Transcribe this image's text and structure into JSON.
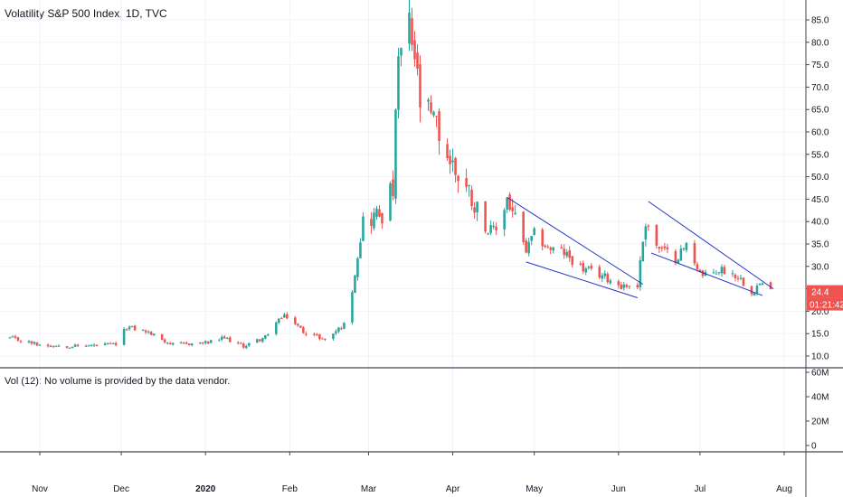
{
  "chart_data": {
    "type": "candlestick",
    "title": "Volatility S&P 500 Index, 1D, TVC",
    "x_tick_labels": [
      "Nov",
      "Dec",
      "2020",
      "Feb",
      "Mar",
      "Apr",
      "May",
      "Jun",
      "Jul",
      "Aug"
    ],
    "y_tick_labels": [
      "10.0",
      "15.0",
      "20.0",
      "25.0",
      "30.0",
      "35.0",
      "40.0",
      "45.0",
      "50.0",
      "55.0",
      "60.0",
      "65.0",
      "70.0",
      "75.0",
      "80.0",
      "85.0"
    ],
    "ylim": [
      7.5,
      87.5
    ],
    "last_price_label": "24.4",
    "countdown_label": "01:21:42",
    "colors": {
      "up": "#26a69a",
      "down": "#ef5350",
      "trendline": "#2633c2",
      "price_tag": "#ef5350"
    },
    "anchors": [
      [
        "2019-10-21",
        14.0
      ],
      [
        "2019-11-01",
        12.5
      ],
      [
        "2019-11-15",
        12.2
      ],
      [
        "2019-11-29",
        12.6
      ],
      [
        "2019-12-03",
        16.5
      ],
      [
        "2019-12-10",
        15.5
      ],
      [
        "2019-12-20",
        12.5
      ],
      [
        "2020-01-02",
        13.0
      ],
      [
        "2020-01-08",
        14.0
      ],
      [
        "2020-01-15",
        12.2
      ],
      [
        "2020-01-24",
        14.5
      ],
      [
        "2020-01-27",
        18.0
      ],
      [
        "2020-01-31",
        18.8
      ],
      [
        "2020-02-06",
        15.5
      ],
      [
        "2020-02-14",
        13.7
      ],
      [
        "2020-02-21",
        17.0
      ],
      [
        "2020-02-24",
        25.0
      ],
      [
        "2020-02-28",
        40.1
      ],
      [
        "2020-03-06",
        42.0
      ],
      [
        "2020-03-10",
        47.3
      ],
      [
        "2020-03-12",
        75.5
      ],
      [
        "2020-03-16",
        82.7
      ],
      [
        "2020-03-18",
        76.5
      ],
      [
        "2020-03-20",
        66.0
      ],
      [
        "2020-03-26",
        61.0
      ],
      [
        "2020-03-31",
        53.5
      ],
      [
        "2020-04-07",
        46.7
      ],
      [
        "2020-04-14",
        37.8
      ],
      [
        "2020-04-17",
        38.2
      ],
      [
        "2020-04-21",
        45.4
      ],
      [
        "2020-04-28",
        33.3
      ],
      [
        "2020-05-01",
        37.2
      ],
      [
        "2020-05-06",
        34.1
      ],
      [
        "2020-05-12",
        33.0
      ],
      [
        "2020-05-19",
        29.3
      ],
      [
        "2020-05-26",
        28.0
      ],
      [
        "2020-06-02",
        25.7
      ],
      [
        "2020-06-08",
        25.8
      ],
      [
        "2020-06-11",
        40.8
      ],
      [
        "2020-06-15",
        34.4
      ],
      [
        "2020-06-22",
        31.8
      ],
      [
        "2020-06-26",
        34.7
      ],
      [
        "2020-07-02",
        27.7
      ],
      [
        "2020-07-09",
        29.3
      ],
      [
        "2020-07-15",
        27.8
      ],
      [
        "2020-07-20",
        24.5
      ],
      [
        "2020-07-23",
        26.1
      ],
      [
        "2020-07-24",
        25.8
      ],
      [
        "2020-07-27",
        24.4
      ]
    ],
    "trendlines": [
      {
        "from": [
          "2020-04-21",
          45.4
        ],
        "to": [
          "2020-06-10",
          26.0
        ]
      },
      {
        "from": [
          "2020-04-28",
          31.0
        ],
        "to": [
          "2020-06-08",
          23.0
        ]
      },
      {
        "from": [
          "2020-06-12",
          44.5
        ],
        "to": [
          "2020-07-28",
          25.0
        ]
      },
      {
        "from": [
          "2020-06-13",
          33.0
        ],
        "to": [
          "2020-07-24",
          23.5
        ]
      }
    ]
  },
  "volume_pane": {
    "label": "Vol (12): No volume is provided by the data vendor.",
    "axis_labels": [
      "60M",
      "40M",
      "20M",
      "0"
    ]
  }
}
